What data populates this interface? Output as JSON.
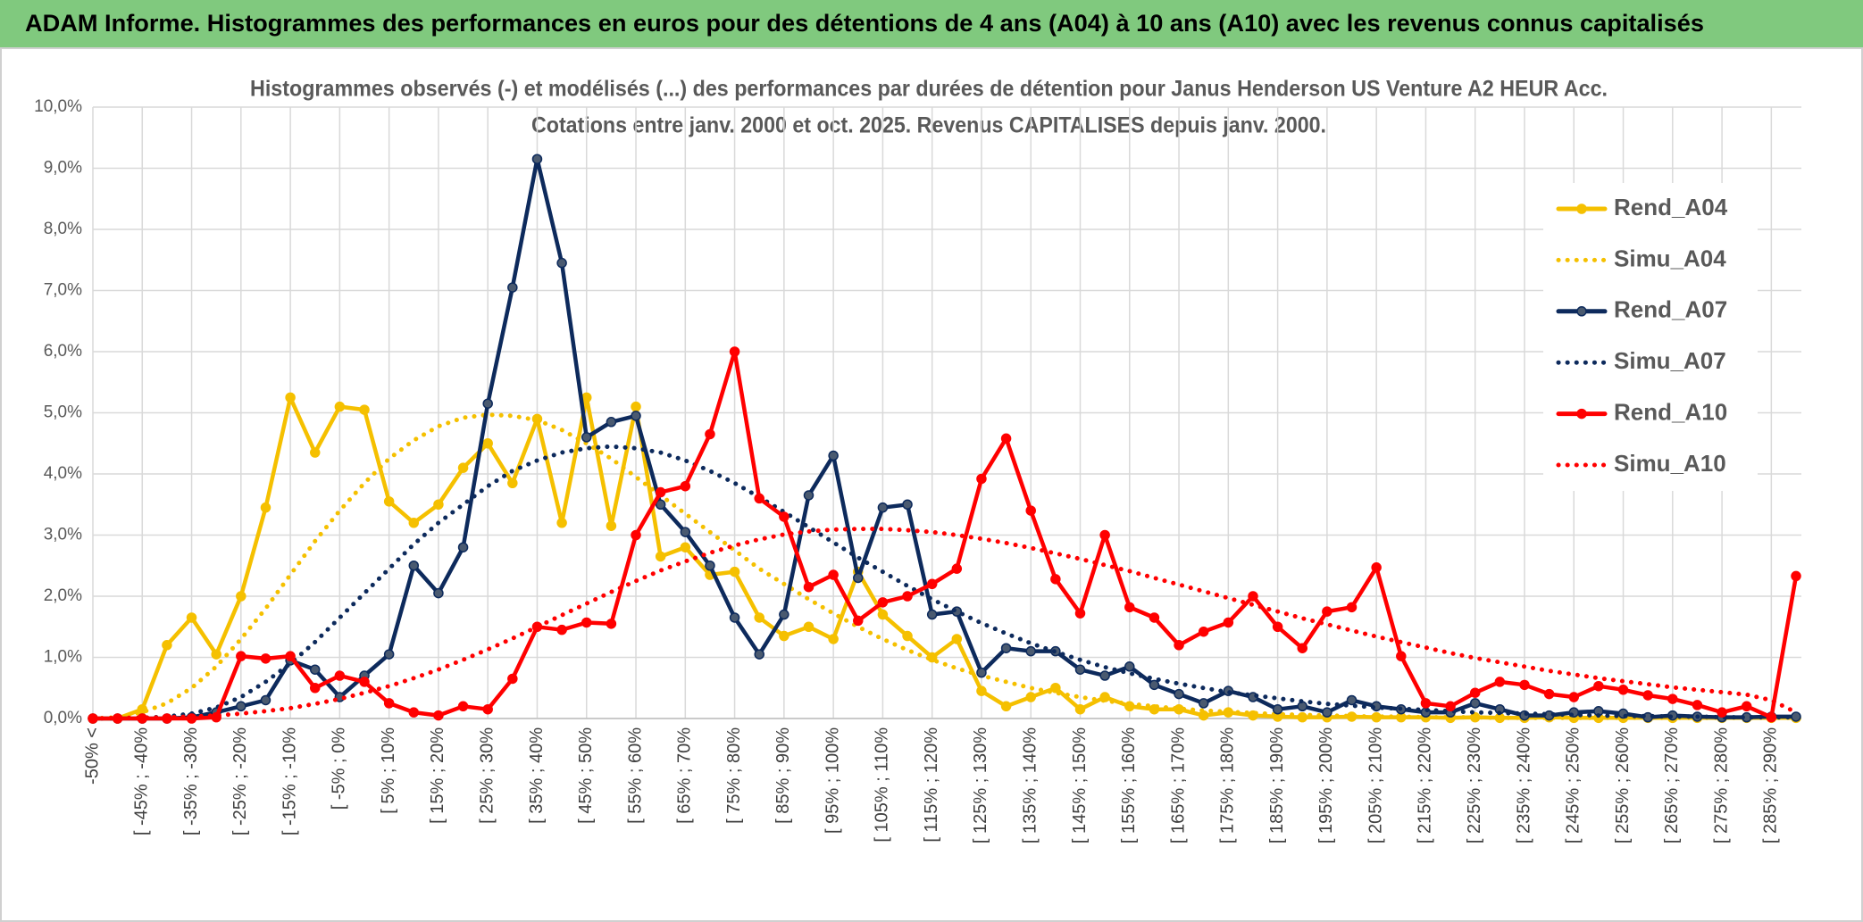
{
  "header": {
    "title": "ADAM Informe. Histogrammes des performances en euros pour des détentions de 4 ans (A04) à 10 ans (A10) avec les revenus connus capitalisés"
  },
  "chart_data": {
    "type": "line",
    "title": "Histogrammes observés (-) et modélisés (...) des performances par durées de détention pour Janus Henderson US Venture A2 HEUR Acc.",
    "subtitle": "Cotations entre janv. 2000 et oct. 2025. Revenus CAPITALISES depuis janv. 2000.",
    "categories": [
      "-50% <",
      null,
      "[ -45% ; -40%",
      null,
      "[ -35% ; -30%",
      null,
      "[ -25% ; -20%",
      null,
      "[ -15% ; -10%",
      null,
      "[ -5% ; 0%",
      null,
      "[ 5% ; 10%",
      null,
      "[ 15% ; 20%",
      null,
      "[ 25% ; 30%",
      null,
      "[ 35% ; 40%",
      null,
      "[ 45% ; 50%",
      null,
      "[ 55% ; 60%",
      null,
      "[ 65% ; 70%",
      null,
      "[ 75% ; 80%",
      null,
      "[ 85% ; 90%",
      null,
      "[ 95% ; 100%",
      null,
      "[ 105% ; 110%",
      null,
      "[ 115% ; 120%",
      null,
      "[ 125% ; 130%",
      null,
      "[ 135% ; 140%",
      null,
      "[ 145% ; 150%",
      null,
      "[ 155% ; 160%",
      null,
      "[ 165% ; 170%",
      null,
      "[ 175% ; 180%",
      null,
      "[ 185% ; 190%",
      null,
      "[ 195% ; 200%",
      null,
      "[ 205% ; 210%",
      null,
      "[ 215% ; 220%",
      null,
      "[ 225% ; 230%",
      null,
      "[ 235% ; 240%",
      null,
      "[ 245% ; 250%",
      null,
      "[ 255% ; 260%",
      null,
      "[ 265% ; 270%",
      null,
      "[ 275% ; 280%",
      null,
      "[ 285% ; 290%",
      null
    ],
    "series": [
      {
        "name": "Rend_A04",
        "color": "#f5c000",
        "style": "solid",
        "markers": true,
        "marker_color": "#f5c000",
        "values": [
          0,
          0,
          0.15,
          1.2,
          1.65,
          1.05,
          2.0,
          3.45,
          5.25,
          4.35,
          5.1,
          5.05,
          3.55,
          3.2,
          3.5,
          4.1,
          4.5,
          3.85,
          4.9,
          3.2,
          5.25,
          3.15,
          5.1,
          2.65,
          2.8,
          2.35,
          2.4,
          1.65,
          1.35,
          1.5,
          1.3,
          2.4,
          1.7,
          1.35,
          1.0,
          1.3,
          0.45,
          0.2,
          0.35,
          0.5,
          0.15,
          0.35,
          0.2,
          0.15,
          0.15,
          0.05,
          0.1,
          0.05,
          0.03,
          0.02,
          0.02,
          0.03,
          0.02,
          0.02,
          0.02,
          0.01,
          0.02,
          0.01,
          0.01,
          0.02,
          0.01,
          0.01,
          0.01,
          0.01,
          0.01,
          0.01,
          0.01,
          0.01,
          0.01,
          0.01
        ]
      },
      {
        "name": "Simu_A04",
        "color": "#f5c000",
        "style": "dotted",
        "markers": false,
        "values": [
          0,
          0.02,
          0.1,
          0.25,
          0.5,
          0.85,
          1.3,
          1.8,
          2.35,
          2.9,
          3.4,
          3.85,
          4.25,
          4.55,
          4.78,
          4.92,
          4.97,
          4.95,
          4.88,
          4.72,
          4.5,
          4.25,
          3.95,
          3.65,
          3.35,
          3.05,
          2.75,
          2.45,
          2.2,
          1.95,
          1.72,
          1.5,
          1.3,
          1.12,
          0.96,
          0.82,
          0.7,
          0.6,
          0.5,
          0.42,
          0.35,
          0.29,
          0.24,
          0.2,
          0.16,
          0.13,
          0.11,
          0.09,
          0.07,
          0.06,
          0.05,
          0.04,
          0.03,
          0.03,
          0.02,
          0.02,
          0.02,
          0.01,
          0.01,
          0.01,
          0.01,
          0.01,
          0.01,
          0.01,
          0.01,
          0.01,
          0.01,
          0.01,
          0.01,
          0.01
        ]
      },
      {
        "name": "Rend_A07",
        "color": "#0d2a5c",
        "style": "solid",
        "markers": true,
        "marker_color": "#4a5a70",
        "values": [
          0,
          0,
          0,
          0,
          0.02,
          0.1,
          0.2,
          0.3,
          0.95,
          0.8,
          0.35,
          0.7,
          1.05,
          2.5,
          2.05,
          2.8,
          5.15,
          7.05,
          9.15,
          7.45,
          4.6,
          4.85,
          4.95,
          3.5,
          3.05,
          2.5,
          1.65,
          1.05,
          1.7,
          3.65,
          4.3,
          2.3,
          3.45,
          3.5,
          1.7,
          1.75,
          0.75,
          1.15,
          1.1,
          1.1,
          0.8,
          0.7,
          0.85,
          0.55,
          0.4,
          0.25,
          0.45,
          0.35,
          0.15,
          0.2,
          0.1,
          0.3,
          0.2,
          0.15,
          0.1,
          0.1,
          0.25,
          0.15,
          0.05,
          0.05,
          0.1,
          0.12,
          0.08,
          0.02,
          0.05,
          0.03,
          0.02,
          0.02,
          0.03,
          0.03
        ]
      },
      {
        "name": "Simu_A07",
        "color": "#0d2a5c",
        "style": "dotted",
        "markers": false,
        "values": [
          0,
          0,
          0.01,
          0.03,
          0.08,
          0.18,
          0.35,
          0.6,
          0.9,
          1.25,
          1.65,
          2.05,
          2.45,
          2.85,
          3.2,
          3.5,
          3.8,
          4.05,
          4.22,
          4.35,
          4.42,
          4.45,
          4.42,
          4.35,
          4.22,
          4.05,
          3.85,
          3.62,
          3.38,
          3.13,
          2.88,
          2.63,
          2.4,
          2.17,
          1.95,
          1.75,
          1.56,
          1.39,
          1.23,
          1.09,
          0.96,
          0.84,
          0.74,
          0.65,
          0.57,
          0.5,
          0.43,
          0.38,
          0.33,
          0.28,
          0.24,
          0.21,
          0.18,
          0.16,
          0.14,
          0.12,
          0.1,
          0.09,
          0.08,
          0.07,
          0.06,
          0.05,
          0.04,
          0.04,
          0.03,
          0.03,
          0.02,
          0.02,
          0.02,
          0.02
        ]
      },
      {
        "name": "Rend_A10",
        "color": "#ff0000",
        "style": "solid",
        "markers": true,
        "marker_color": "#ff0000",
        "values": [
          0,
          0,
          0,
          0,
          0,
          0.02,
          1.02,
          0.98,
          1.02,
          0.5,
          0.7,
          0.6,
          0.25,
          0.1,
          0.05,
          0.2,
          0.15,
          0.65,
          1.5,
          1.45,
          1.57,
          1.55,
          3.0,
          3.7,
          3.8,
          4.65,
          6.0,
          3.6,
          3.3,
          2.15,
          2.35,
          1.6,
          1.9,
          2.0,
          2.2,
          2.45,
          3.92,
          4.58,
          3.4,
          2.28,
          1.72,
          3.0,
          1.82,
          1.65,
          1.2,
          1.42,
          1.57,
          2.0,
          1.5,
          1.15,
          1.75,
          1.82,
          2.47,
          1.02,
          0.25,
          0.2,
          0.42,
          0.6,
          0.55,
          0.4,
          0.35,
          0.53,
          0.47,
          0.38,
          0.32,
          0.22,
          0.1,
          0.2,
          0.02,
          2.33
        ]
      },
      {
        "name": "Simu_A10",
        "color": "#ff0000",
        "style": "dotted",
        "markers": false,
        "values": [
          0,
          0.01,
          0.01,
          0.02,
          0.03,
          0.05,
          0.08,
          0.12,
          0.17,
          0.24,
          0.32,
          0.42,
          0.53,
          0.66,
          0.8,
          0.96,
          1.13,
          1.31,
          1.5,
          1.69,
          1.88,
          2.07,
          2.25,
          2.42,
          2.57,
          2.71,
          2.83,
          2.93,
          3.01,
          3.06,
          3.09,
          3.1,
          3.1,
          3.08,
          3.05,
          3.0,
          2.94,
          2.87,
          2.79,
          2.7,
          2.61,
          2.51,
          2.41,
          2.3,
          2.19,
          2.08,
          1.97,
          1.86,
          1.75,
          1.64,
          1.54,
          1.44,
          1.34,
          1.25,
          1.16,
          1.07,
          0.99,
          0.92,
          0.85,
          0.78,
          0.72,
          0.66,
          0.61,
          0.56,
          0.51,
          0.47,
          0.43,
          0.39,
          0.3,
          0.1
        ]
      }
    ],
    "ylim": [
      0,
      10
    ],
    "yticks": [
      {
        "value": 0,
        "label": "0,0%"
      },
      {
        "value": 1,
        "label": "1,0%"
      },
      {
        "value": 2,
        "label": "2,0%"
      },
      {
        "value": 3,
        "label": "3,0%"
      },
      {
        "value": 4,
        "label": "4,0%"
      },
      {
        "value": 5,
        "label": "5,0%"
      },
      {
        "value": 6,
        "label": "6,0%"
      },
      {
        "value": 7,
        "label": "7,0%"
      },
      {
        "value": 8,
        "label": "8,0%"
      },
      {
        "value": 9,
        "label": "9,0%"
      },
      {
        "value": 10,
        "label": "10,0%"
      }
    ],
    "grid": true,
    "legend": "right"
  }
}
